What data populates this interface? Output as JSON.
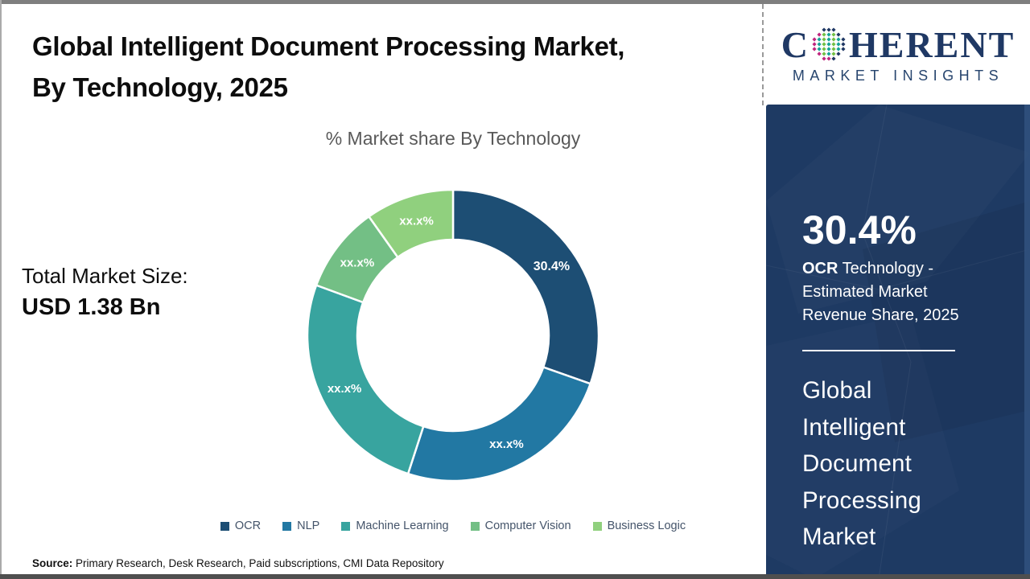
{
  "header": {
    "title_line1": "Global Intelligent Document Processing Market,",
    "title_line2": "By Technology, 2025"
  },
  "logo": {
    "word_start": "C",
    "word_end": "HERENT",
    "subtitle": "MARKET INSIGHTS"
  },
  "chart_data": {
    "type": "pie",
    "donut": true,
    "title": "% Market share By Technology",
    "start_angle_deg": 0,
    "direction": "clockwise",
    "legend_position": "bottom",
    "segments": [
      {
        "label": "OCR",
        "value": 30.4,
        "display_value": "30.4%",
        "color": "#1d4e74"
      },
      {
        "label": "NLP",
        "value": 24.6,
        "display_value": "xx.x%",
        "color": "#2278a3"
      },
      {
        "label": "Machine Learning",
        "value": 25.6,
        "display_value": "xx.x%",
        "color": "#38a49f"
      },
      {
        "label": "Computer Vision",
        "value": 9.6,
        "display_value": "xx.x%",
        "color": "#73bf85"
      },
      {
        "label": "Business Logic",
        "value": 9.8,
        "display_value": "xx.x%",
        "color": "#90d07e"
      }
    ]
  },
  "market_size": {
    "label": "Total Market Size:",
    "value": "USD 1.38 Bn"
  },
  "side_panel": {
    "headline_value": "30.4%",
    "desc_bold": "OCR",
    "desc_rest": " Technology -",
    "desc_line2": "Estimated Market",
    "desc_line3": "Revenue Share, 2025",
    "market_words": [
      "Global",
      "Intelligent",
      "Document",
      "Processing",
      "Market"
    ],
    "background_color": "#1e3a63"
  },
  "footer": {
    "source_label": "Source:",
    "source_text": " Primary Research, Desk Research, Paid subscriptions, CMI Data Repository"
  }
}
